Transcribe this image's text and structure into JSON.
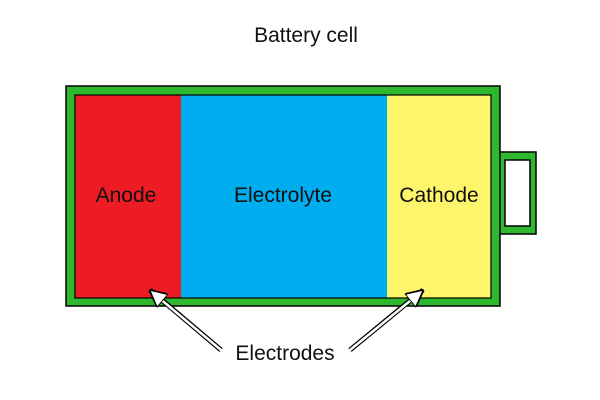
{
  "diagram": {
    "title": "Battery cell",
    "regions": [
      {
        "id": "anode",
        "label": "Anode",
        "color": "#ed1c24"
      },
      {
        "id": "electrolyte",
        "label": "Electrolyte",
        "color": "#00aeef"
      },
      {
        "id": "cathode",
        "label": "Cathode",
        "color": "#fff56b"
      }
    ],
    "casing_color": "#2eb82e",
    "outline_color": "#000000",
    "callout": "Electrodes"
  }
}
